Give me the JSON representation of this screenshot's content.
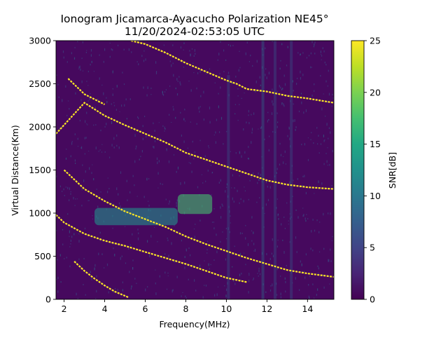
{
  "chart_data": {
    "type": "heatmap",
    "title_line1": "Ionogram Jicamarca-Ayacucho Polarization NE45°",
    "title_line2": "11/20/2024-02:53:05 UTC",
    "xlabel": "Frequency(MHz)",
    "ylabel": "Virtual Distance(Km)",
    "xlim": [
      1.6,
      15.3
    ],
    "ylim": [
      0,
      3000
    ],
    "xticks": [
      "2",
      "4",
      "6",
      "8",
      "10",
      "12",
      "14"
    ],
    "xtick_values": [
      2,
      4,
      6,
      8,
      10,
      12,
      14
    ],
    "yticks": [
      "0",
      "500",
      "1000",
      "1500",
      "2000",
      "2500",
      "3000"
    ],
    "ytick_values": [
      0,
      500,
      1000,
      1500,
      2000,
      2500,
      3000
    ],
    "colorbar": {
      "label": "SNR[dB]",
      "range": [
        0,
        25
      ],
      "ticks": [
        "0",
        "5",
        "10",
        "15",
        "20",
        "25"
      ],
      "tick_values": [
        0,
        5,
        10,
        15,
        20,
        25
      ],
      "colormap": "viridis"
    },
    "traces": [
      {
        "name": "trace-1",
        "snr": 24,
        "points": [
          [
            2.5,
            440
          ],
          [
            3.0,
            330
          ],
          [
            3.5,
            240
          ],
          [
            4.0,
            160
          ],
          [
            4.5,
            90
          ],
          [
            5.2,
            20
          ]
        ]
      },
      {
        "name": "trace-2",
        "snr": 24,
        "points": [
          [
            1.6,
            980
          ],
          [
            2.0,
            890
          ],
          [
            3.0,
            760
          ],
          [
            4.0,
            680
          ],
          [
            5.0,
            620
          ],
          [
            6.0,
            550
          ],
          [
            7.0,
            480
          ],
          [
            8.0,
            410
          ],
          [
            9.0,
            330
          ],
          [
            10.0,
            250
          ],
          [
            11.0,
            200
          ]
        ]
      },
      {
        "name": "trace-3",
        "snr": 24,
        "points": [
          [
            2.0,
            1500
          ],
          [
            3.0,
            1280
          ],
          [
            4.0,
            1140
          ],
          [
            5.0,
            1020
          ],
          [
            6.0,
            930
          ],
          [
            7.0,
            840
          ],
          [
            8.0,
            730
          ],
          [
            9.0,
            640
          ],
          [
            10.0,
            560
          ],
          [
            11.0,
            480
          ],
          [
            12.0,
            410
          ],
          [
            13.0,
            340
          ],
          [
            14.0,
            300
          ],
          [
            15.3,
            260
          ]
        ]
      },
      {
        "name": "trace-4",
        "snr": 24,
        "points": [
          [
            1.6,
            1920
          ],
          [
            3.0,
            2280
          ],
          [
            4.0,
            2130
          ],
          [
            5.0,
            2020
          ],
          [
            6.0,
            1920
          ],
          [
            7.0,
            1820
          ],
          [
            8.0,
            1700
          ],
          [
            9.0,
            1620
          ],
          [
            10.0,
            1540
          ],
          [
            11.0,
            1460
          ],
          [
            12.0,
            1380
          ],
          [
            13.0,
            1330
          ],
          [
            14.0,
            1300
          ],
          [
            15.3,
            1280
          ]
        ]
      },
      {
        "name": "trace-5",
        "snr": 24,
        "points": [
          [
            2.2,
            2560
          ],
          [
            3.0,
            2380
          ],
          [
            4.0,
            2260
          ]
        ]
      },
      {
        "name": "trace-6",
        "snr": 24,
        "points": [
          [
            5.3,
            3000
          ],
          [
            6.0,
            2960
          ],
          [
            7.0,
            2860
          ],
          [
            8.0,
            2740
          ],
          [
            9.0,
            2640
          ],
          [
            10.0,
            2540
          ],
          [
            10.5,
            2500
          ],
          [
            11.0,
            2440
          ],
          [
            12.0,
            2410
          ],
          [
            13.0,
            2360
          ],
          [
            14.0,
            2330
          ],
          [
            15.3,
            2280
          ]
        ]
      }
    ],
    "blobs": [
      {
        "name": "blob-1",
        "x": [
          3.5,
          7.6
        ],
        "y": [
          860,
          1060
        ],
        "snr": 12
      },
      {
        "name": "blob-2",
        "x": [
          7.6,
          9.3
        ],
        "y": [
          990,
          1220
        ],
        "snr": 17
      }
    ],
    "streaks": [
      {
        "name": "streak-1",
        "x": 10.1,
        "y": [
          0,
          2600
        ],
        "snr": 8
      },
      {
        "name": "streak-2",
        "x": 11.8,
        "y": [
          0,
          3000
        ],
        "snr": 10
      },
      {
        "name": "streak-3",
        "x": 12.4,
        "y": [
          0,
          3000
        ],
        "snr": 8
      },
      {
        "name": "streak-4",
        "x": 13.2,
        "y": [
          0,
          3000
        ],
        "snr": 7
      }
    ]
  }
}
